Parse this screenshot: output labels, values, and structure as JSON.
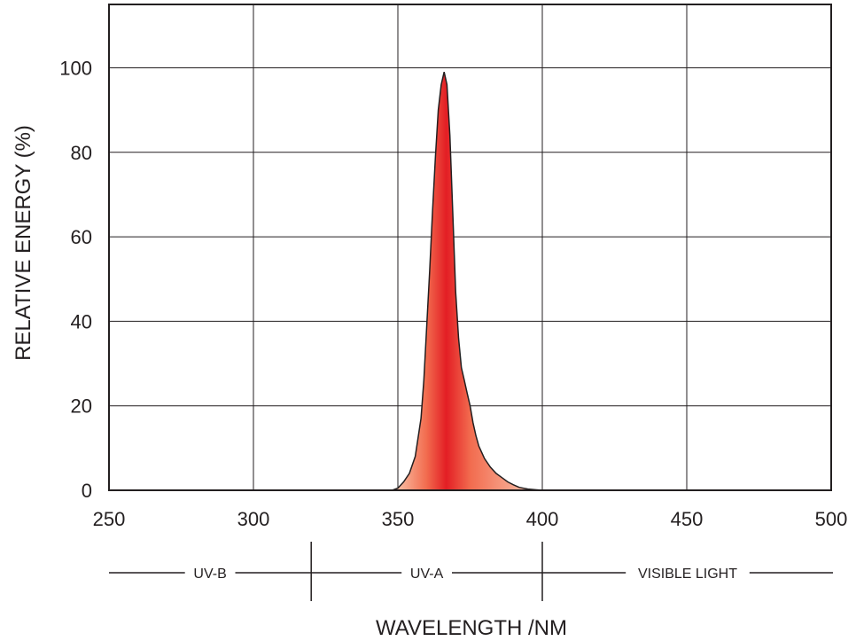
{
  "chart_data": {
    "type": "area",
    "title": "",
    "xlabel": "WAVELENGTH /NM",
    "ylabel": "RELATIVE ENERGY (%)",
    "xlim": [
      250,
      500
    ],
    "ylim": [
      0,
      115
    ],
    "x_ticks": [
      "250",
      "300",
      "350",
      "400",
      "450",
      "500"
    ],
    "y_ticks": [
      "0",
      "20",
      "40",
      "60",
      "80",
      "100"
    ],
    "grid": true,
    "legend": "none",
    "series": [
      {
        "x": [
          348,
          350,
          352,
          354,
          356,
          358,
          359,
          360,
          361,
          362,
          363,
          364,
          365,
          366,
          367,
          368,
          369,
          370,
          371,
          372,
          373,
          374,
          375,
          376,
          377,
          378,
          380,
          382,
          384,
          386,
          388,
          390,
          392,
          395,
          398,
          400
        ],
        "y": [
          0,
          0.5,
          2,
          4,
          8,
          17,
          26,
          39,
          52,
          66,
          79,
          90,
          96,
          99,
          96,
          84,
          66,
          47,
          36,
          29,
          26,
          23,
          20,
          16,
          13,
          10.5,
          7.5,
          5.5,
          4,
          3,
          2,
          1.3,
          0.7,
          0.3,
          0.1,
          0
        ]
      }
    ],
    "fill_colors": {
      "edge": "#f9c0a5",
      "mid": "#f26c4f",
      "core": "#e31e24"
    },
    "bands": [
      {
        "label": "UV-B",
        "from": 250,
        "to": 320
      },
      {
        "label": "UV-A",
        "from": 320,
        "to": 400
      },
      {
        "label": "VISIBLE LIGHT",
        "from": 400,
        "to": 500
      }
    ]
  }
}
